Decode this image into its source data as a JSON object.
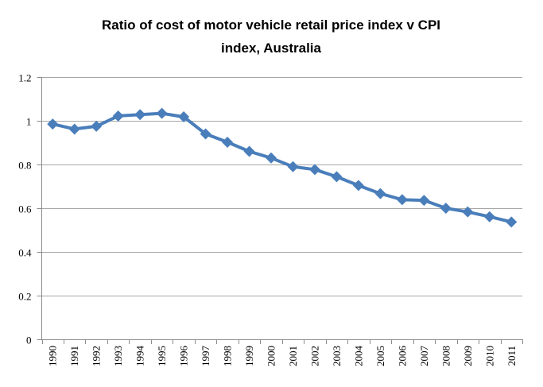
{
  "chart_data": {
    "type": "line",
    "title": "Ratio of cost of motor vehicle retail price index v CPI index, Australia",
    "title_lines": [
      "Ratio of cost of motor vehicle retail price index v CPI",
      "index, Australia"
    ],
    "xlabel": "",
    "ylabel": "",
    "categories": [
      "1990",
      "1991",
      "1992",
      "1993",
      "1994",
      "1995",
      "1996",
      "1997",
      "1998",
      "1999",
      "2000",
      "2001",
      "2002",
      "2003",
      "2004",
      "2005",
      "2006",
      "2007",
      "2008",
      "2009",
      "2010",
      "2011"
    ],
    "series": [
      {
        "name": "Ratio",
        "color": "#4a7ebb",
        "marker": "diamond",
        "values": [
          0.985,
          0.962,
          0.975,
          1.022,
          1.028,
          1.034,
          1.018,
          0.94,
          0.902,
          0.86,
          0.83,
          0.79,
          0.777,
          0.744,
          0.704,
          0.667,
          0.639,
          0.636,
          0.6,
          0.583,
          0.561,
          0.537
        ]
      }
    ],
    "ylim": [
      0,
      1.2
    ],
    "yticks": [
      0,
      0.2,
      0.4,
      0.6,
      0.8,
      1,
      1.2
    ],
    "ytick_labels": [
      "0",
      "0.2",
      "0.4",
      "0.6",
      "0.8",
      "1",
      "1.2"
    ],
    "grid": "horizontal",
    "legend": "none"
  }
}
